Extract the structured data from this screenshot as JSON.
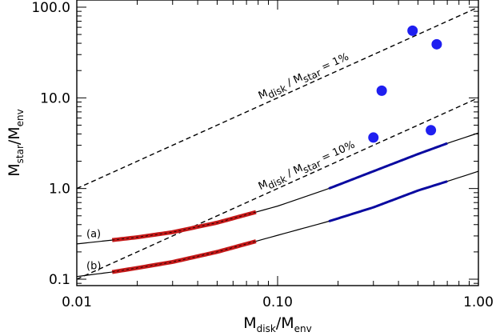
{
  "chart_data": {
    "type": "line",
    "xscale": "log",
    "yscale": "log",
    "xlim": [
      0.01,
      1.0
    ],
    "ylim": [
      0.085,
      120
    ],
    "grid": false,
    "xlabel": {
      "main": "M",
      "sub1": "disk",
      "sep": "/M",
      "sub2": "env"
    },
    "ylabel": {
      "main": "M",
      "sub1": "star",
      "sep": "/M",
      "sub2": "env"
    },
    "xticks": [
      {
        "value": 0.01,
        "label": "0.01"
      },
      {
        "value": 0.1,
        "label": "0.10"
      },
      {
        "value": 1.0,
        "label": "1.00"
      }
    ],
    "yticks": [
      {
        "value": 0.1,
        "label": "0.1"
      },
      {
        "value": 1.0,
        "label": "1.0"
      },
      {
        "value": 10.0,
        "label": "10.0"
      },
      {
        "value": 100.0,
        "label": "100.0"
      }
    ],
    "ratio_lines": [
      {
        "ratio": 0.01,
        "label_main": "M",
        "label_sub1": "disk",
        "label_mid": " / M",
        "label_sub2": "star",
        "label_end": " = 1%",
        "anchor_x": 0.082
      },
      {
        "ratio": 0.1,
        "label_main": "M",
        "label_sub1": "disk",
        "label_mid": " / M",
        "label_sub2": "star",
        "label_end": " = 10%",
        "anchor_x": 0.082
      }
    ],
    "curves": [
      {
        "label": "(a)",
        "x": [
          0.01,
          0.015,
          0.02,
          0.03,
          0.05,
          0.078,
          0.1,
          0.18,
          0.3,
          0.5,
          0.7,
          1.0
        ],
        "y": [
          0.245,
          0.27,
          0.29,
          0.33,
          0.42,
          0.55,
          0.64,
          1.0,
          1.55,
          2.4,
          3.15,
          4.1
        ],
        "highlight_red": [
          0.015,
          0.078
        ],
        "highlight_blue": [
          0.18,
          0.7
        ]
      },
      {
        "label": "(b)",
        "x": [
          0.01,
          0.015,
          0.02,
          0.03,
          0.05,
          0.078,
          0.1,
          0.18,
          0.3,
          0.5,
          0.7,
          1.0
        ],
        "y": [
          0.107,
          0.12,
          0.133,
          0.155,
          0.2,
          0.262,
          0.305,
          0.435,
          0.62,
          0.95,
          1.2,
          1.55
        ],
        "highlight_red": [
          0.015,
          0.078
        ],
        "highlight_blue": [
          0.18,
          0.7
        ]
      }
    ],
    "points": [
      {
        "x": 0.47,
        "y": 55.0
      },
      {
        "x": 0.62,
        "y": 39.0
      },
      {
        "x": 0.33,
        "y": 12.0
      },
      {
        "x": 0.3,
        "y": 3.65
      },
      {
        "x": 0.58,
        "y": 4.4
      }
    ],
    "colors": {
      "red": "#c41818",
      "blue": "#0a0aa0",
      "points": "#1f1ff0",
      "black": "#000000"
    }
  }
}
